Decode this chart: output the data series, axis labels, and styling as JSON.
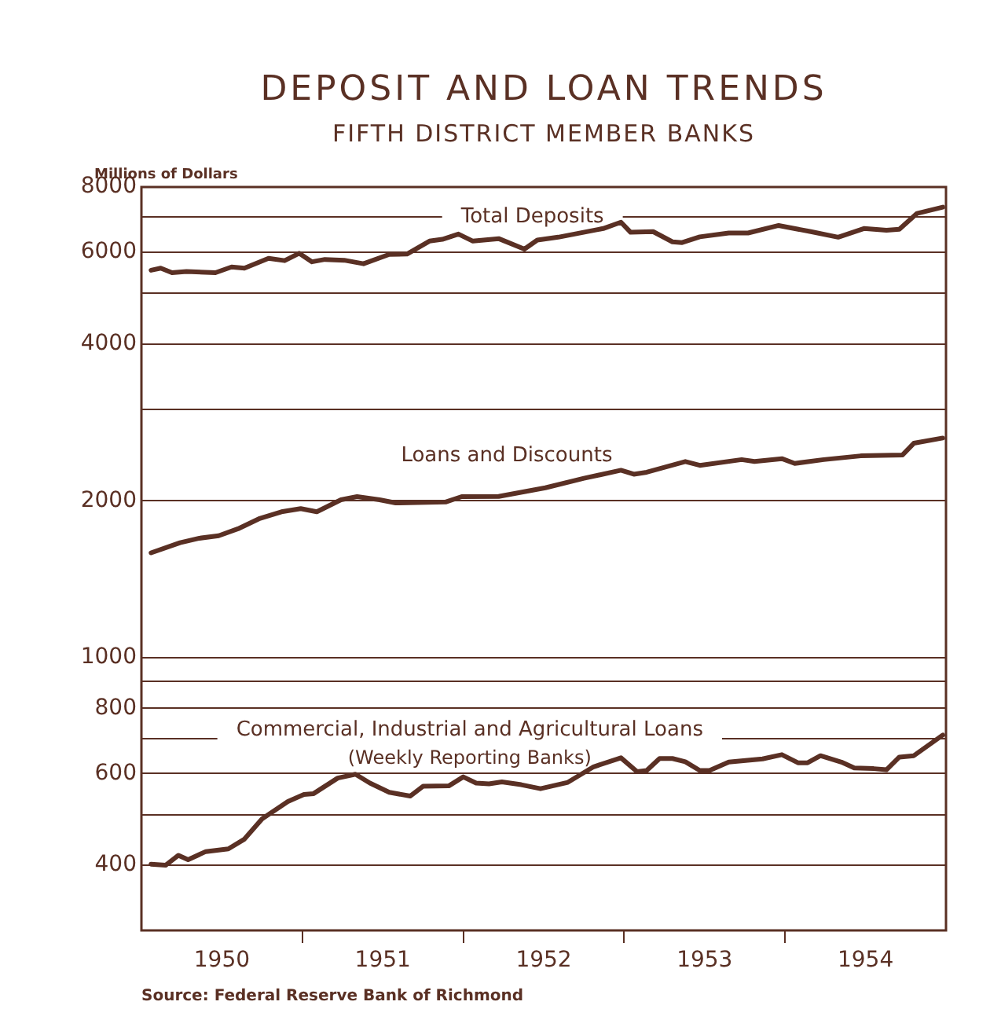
{
  "chart_data": {
    "type": "line",
    "title": "DEPOSIT AND LOAN TRENDS",
    "subtitle": "FIFTH DISTRICT MEMBER BANKS",
    "ylabel": "Millions of Dollars",
    "annotations": [
      "(Weekly Reporting Banks)",
      "Source: Federal Reserve Bank of Richmond"
    ],
    "log": "y",
    "grid": "y",
    "legend": false,
    "marker": "none",
    "line_style": "solid",
    "xlim": [
      1950,
      1955
    ],
    "xticks": [
      {
        "value": 1950.5,
        "label": "1950"
      },
      {
        "value": 1951,
        "label": null
      },
      {
        "value": 1951.5,
        "label": "1951"
      },
      {
        "value": 1952,
        "label": null
      },
      {
        "value": 1952.5,
        "label": "1952"
      },
      {
        "value": 1953,
        "label": null
      },
      {
        "value": 1953.5,
        "label": "1953"
      },
      {
        "value": 1954,
        "label": null
      },
      {
        "value": 1954.5,
        "label": "1954"
      }
    ],
    "ylim": [
      300,
      8000
    ],
    "yticks": [
      400,
      {
        "value": 500,
        "label": null
      },
      600,
      {
        "value": 700,
        "label": null
      },
      800,
      {
        "value": 900,
        "label": null
      },
      1000,
      2000,
      {
        "value": 3000,
        "label": null
      },
      4000,
      {
        "value": 5000,
        "label": null
      },
      6000,
      {
        "value": 7000,
        "label": null
      },
      8000
    ],
    "series": [
      {
        "name": "Total Deposits",
        "color": "#5a3024",
        "x": [
          1950.06,
          1950.12,
          1950.19,
          1950.28,
          1950.46,
          1950.56,
          1950.64,
          1950.79,
          1950.89,
          1950.98,
          1951.06,
          1951.14,
          1951.26,
          1951.38,
          1951.54,
          1951.65,
          1951.79,
          1951.87,
          1951.97,
          1952.06,
          1952.22,
          1952.38,
          1952.46,
          1952.59,
          1952.87,
          1952.98,
          1953.04,
          1953.18,
          1953.3,
          1953.36,
          1953.47,
          1953.65,
          1953.77,
          1953.96,
          1954.16,
          1954.33,
          1954.49,
          1954.63,
          1954.71,
          1954.82,
          1954.98
        ],
        "values": [
          5540,
          5590,
          5480,
          5510,
          5480,
          5620,
          5590,
          5840,
          5780,
          5970,
          5750,
          5810,
          5790,
          5700,
          5940,
          5950,
          6300,
          6350,
          6500,
          6300,
          6370,
          6080,
          6330,
          6410,
          6660,
          6850,
          6550,
          6570,
          6280,
          6260,
          6420,
          6530,
          6530,
          6750,
          6570,
          6410,
          6660,
          6610,
          6640,
          7120,
          7320
        ]
      },
      {
        "name": "Loans and Discounts",
        "color": "#5a3024",
        "x": [
          1950.06,
          1950.24,
          1950.36,
          1950.48,
          1950.6,
          1950.73,
          1950.87,
          1950.99,
          1951.09,
          1951.24,
          1951.34,
          1951.48,
          1951.58,
          1951.89,
          1951.99,
          1952.22,
          1952.51,
          1952.75,
          1952.98,
          1953.06,
          1953.14,
          1953.38,
          1953.47,
          1953.73,
          1953.81,
          1953.98,
          1954.06,
          1954.24,
          1954.47,
          1954.73,
          1954.8,
          1954.98
        ],
        "values": [
          1590,
          1663,
          1696,
          1715,
          1768,
          1848,
          1906,
          1933,
          1906,
          2010,
          2038,
          2010,
          1982,
          1990,
          2038,
          2040,
          2119,
          2210,
          2290,
          2250,
          2270,
          2380,
          2340,
          2400,
          2380,
          2410,
          2360,
          2400,
          2440,
          2450,
          2580,
          2640
        ]
      },
      {
        "name": "Commercial, Industrial and Agricultural Loans",
        "color": "#5a3024",
        "x": [
          1950.06,
          1950.15,
          1950.23,
          1950.29,
          1950.4,
          1950.54,
          1950.64,
          1950.75,
          1950.91,
          1951.01,
          1951.07,
          1951.22,
          1951.33,
          1951.42,
          1951.54,
          1951.67,
          1951.75,
          1951.91,
          1952.0,
          1952.08,
          1952.16,
          1952.24,
          1952.36,
          1952.48,
          1952.65,
          1952.81,
          1952.98,
          1953.08,
          1953.14,
          1953.22,
          1953.3,
          1953.38,
          1953.47,
          1953.53,
          1953.65,
          1953.86,
          1953.98,
          1954.08,
          1954.14,
          1954.22,
          1954.35,
          1954.43,
          1954.55,
          1954.63,
          1954.71,
          1954.8,
          1954.98
        ],
        "values": [
          402,
          400,
          418,
          410,
          425,
          430,
          449,
          491,
          530,
          547,
          549,
          588,
          598,
          575,
          552,
          543,
          567,
          568,
          591,
          575,
          573,
          578,
          571,
          561,
          577,
          618,
          643,
          605,
          608,
          641,
          641,
          632,
          608,
          608,
          631,
          640,
          652,
          629,
          629,
          649,
          631,
          615,
          613,
          610,
          645,
          649,
          711
        ]
      }
    ]
  }
}
